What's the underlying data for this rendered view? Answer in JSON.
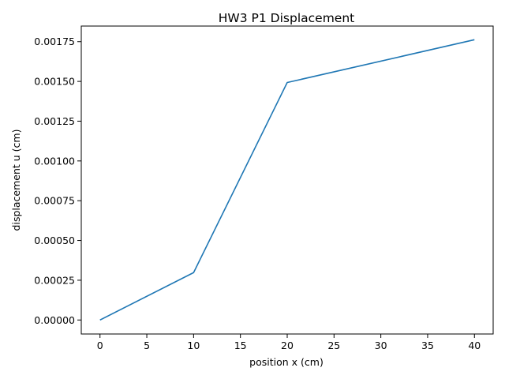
{
  "chart_data": {
    "type": "line",
    "title": "HW3 P1 Displacement",
    "xlabel": "position x (cm)",
    "ylabel": "displacement u (cm)",
    "xlim": [
      -2,
      42
    ],
    "ylim": [
      -8.8e-05,
      0.001848
    ],
    "xticks": [
      0,
      5,
      10,
      15,
      20,
      25,
      30,
      35,
      40
    ],
    "xtick_labels": [
      "0",
      "5",
      "10",
      "15",
      "20",
      "25",
      "30",
      "35",
      "40"
    ],
    "yticks": [
      0,
      0.00025,
      0.0005,
      0.00075,
      0.001,
      0.00125,
      0.0015,
      0.00175
    ],
    "ytick_labels": [
      "0.00000",
      "0.00025",
      "0.00050",
      "0.00075",
      "0.00100",
      "0.00125",
      "0.00150",
      "0.00175"
    ],
    "grid": false,
    "series": [
      {
        "color": "#1f77b4",
        "x": [
          0,
          10,
          20,
          40
        ],
        "y": [
          0,
          0.000298,
          0.001493,
          0.001762
        ]
      }
    ]
  }
}
